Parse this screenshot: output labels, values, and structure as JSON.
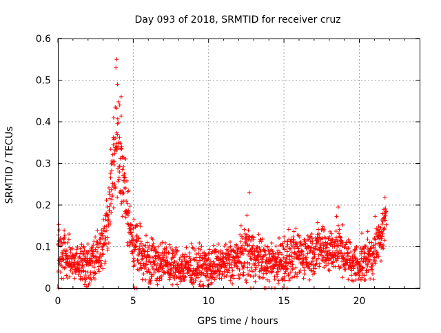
{
  "chart_data": {
    "type": "scatter",
    "title": "Day 093 of 2018, SRMTID for receiver cruz",
    "xlabel": "GPS time / hours",
    "ylabel": "SRMTID / TECUs",
    "xlim": [
      0,
      24
    ],
    "ylim": [
      0,
      0.6
    ],
    "xticks": [
      "0",
      "5",
      "10",
      "15",
      "20"
    ],
    "yticks": [
      "0",
      "0.1",
      "0.2",
      "0.3",
      "0.4",
      "0.5",
      "0.6"
    ],
    "grid": true,
    "legend": "none",
    "marker": "+",
    "color": "#ff0000",
    "series": [
      {
        "name": "SRMTID",
        "profile_hours": [
          0,
          0.5,
          1,
          1.5,
          2,
          2.5,
          3,
          3.3,
          3.6,
          3.9,
          4.2,
          4.5,
          4.8,
          5,
          5.5,
          6,
          7,
          8,
          9,
          10,
          11,
          12,
          12.5,
          13,
          14,
          15,
          16,
          17,
          17.5,
          18,
          18.5,
          19,
          19.5,
          20,
          20.5,
          21,
          21.5,
          21.8
        ],
        "profile_center": [
          0.09,
          0.08,
          0.06,
          0.06,
          0.06,
          0.07,
          0.1,
          0.16,
          0.26,
          0.35,
          0.3,
          0.2,
          0.14,
          0.11,
          0.08,
          0.07,
          0.06,
          0.05,
          0.05,
          0.05,
          0.06,
          0.07,
          0.09,
          0.08,
          0.06,
          0.07,
          0.08,
          0.09,
          0.1,
          0.09,
          0.1,
          0.08,
          0.06,
          0.06,
          0.07,
          0.09,
          0.13,
          0.16
        ],
        "profile_spread": [
          0.05,
          0.05,
          0.04,
          0.04,
          0.05,
          0.05,
          0.06,
          0.07,
          0.09,
          0.12,
          0.1,
          0.08,
          0.06,
          0.05,
          0.05,
          0.05,
          0.04,
          0.04,
          0.04,
          0.04,
          0.04,
          0.05,
          0.06,
          0.05,
          0.04,
          0.05,
          0.05,
          0.05,
          0.05,
          0.05,
          0.05,
          0.05,
          0.04,
          0.04,
          0.05,
          0.05,
          0.05,
          0.05
        ],
        "coverage_hours": [
          0,
          21.8
        ],
        "sample_step_hours": 0.011,
        "highlights": [
          [
            3.9,
            0.55
          ],
          [
            3.85,
            0.53
          ],
          [
            3.95,
            0.49
          ],
          [
            4.2,
            0.46
          ],
          [
            4.1,
            0.44
          ],
          [
            3.7,
            0.41
          ],
          [
            12.7,
            0.23
          ],
          [
            18.6,
            0.195
          ],
          [
            21.7,
            0.218
          ]
        ],
        "zero_points": [
          0.05,
          5.1,
          5.2,
          6.1,
          12.8,
          13.7,
          13.8,
          14.2,
          14.4,
          14.9,
          15.2
        ]
      }
    ]
  }
}
